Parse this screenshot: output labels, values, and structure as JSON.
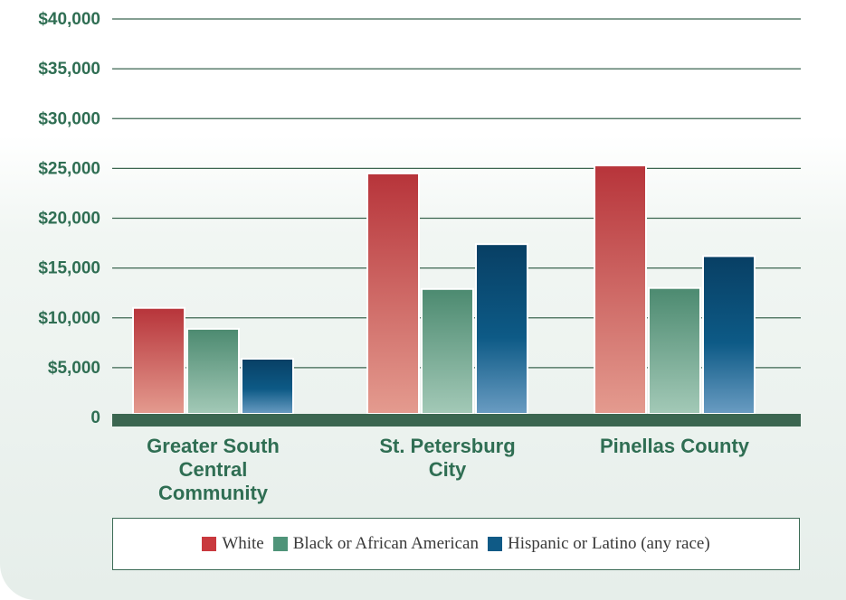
{
  "chart_data": {
    "type": "bar",
    "title": "",
    "xlabel": "",
    "ylabel": "",
    "ylim": [
      0,
      40000
    ],
    "y_ticks": [
      {
        "value": 40000,
        "label": "$40,000"
      },
      {
        "value": 35000,
        "label": "$35,000"
      },
      {
        "value": 30000,
        "label": "$30,000"
      },
      {
        "value": 25000,
        "label": "$25,000"
      },
      {
        "value": 20000,
        "label": "$20,000"
      },
      {
        "value": 15000,
        "label": "$15,000"
      },
      {
        "value": 10000,
        "label": "$10,000"
      },
      {
        "value": 5000,
        "label": "$5,000"
      },
      {
        "value": 0,
        "label": "0"
      }
    ],
    "categories": [
      "Greater South Central Community",
      "St. Petersburg City",
      "Pinellas County"
    ],
    "category_lines": [
      [
        "Greater South",
        "Central",
        "Community"
      ],
      [
        "St. Petersburg",
        "City"
      ],
      [
        "Pinellas County"
      ]
    ],
    "series": [
      {
        "name": "White",
        "color": "#b83a3e",
        "values": [
          11000,
          24500,
          25300
        ]
      },
      {
        "name": "Black or African American",
        "color": "#4f8f74",
        "values": [
          8900,
          12900,
          13000
        ]
      },
      {
        "name": "Hispanic or Latino (any race)",
        "color": "#0d4f78",
        "values": [
          5900,
          17400,
          16200
        ]
      }
    ],
    "grid": true,
    "legend_position": "bottom"
  }
}
